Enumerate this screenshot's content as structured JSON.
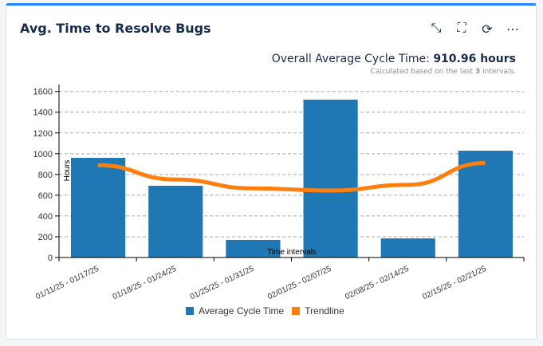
{
  "header": {
    "title": "Avg. Time to Resolve Bugs",
    "icons": [
      "minimize-icon",
      "fullscreen-icon",
      "refresh-icon",
      "more-icon"
    ]
  },
  "summary": {
    "label": "Overall Average Cycle Time:",
    "value": "910.96 hours",
    "sub_prefix": "Calculated based on the last",
    "sub_count": "3",
    "sub_suffix": "intervals."
  },
  "chart_data": {
    "type": "bar",
    "title": "",
    "xlabel": "Time intervals",
    "ylabel": "Hours",
    "ylim": [
      0,
      1600
    ],
    "yticks": [
      0,
      200,
      400,
      600,
      800,
      1000,
      1200,
      1400,
      1600
    ],
    "categories": [
      "01/11/25 - 01/17/25",
      "01/18/25 - 01/24/25",
      "01/25/25 - 01/31/25",
      "02/01/25 - 02/07/25",
      "02/08/25 - 02/14/25",
      "02/15/25 - 02/21/25"
    ],
    "series": [
      {
        "name": "Average Cycle Time",
        "type": "bar",
        "color": "#1f77b4",
        "values": [
          960,
          691,
          169,
          1521,
          184,
          1029
        ]
      },
      {
        "name": "Trendline",
        "type": "line",
        "color": "#ff7f0e",
        "values": [
          890,
          752,
          666,
          645,
          700,
          910
        ]
      }
    ],
    "grid": true,
    "legend": "bottom"
  }
}
